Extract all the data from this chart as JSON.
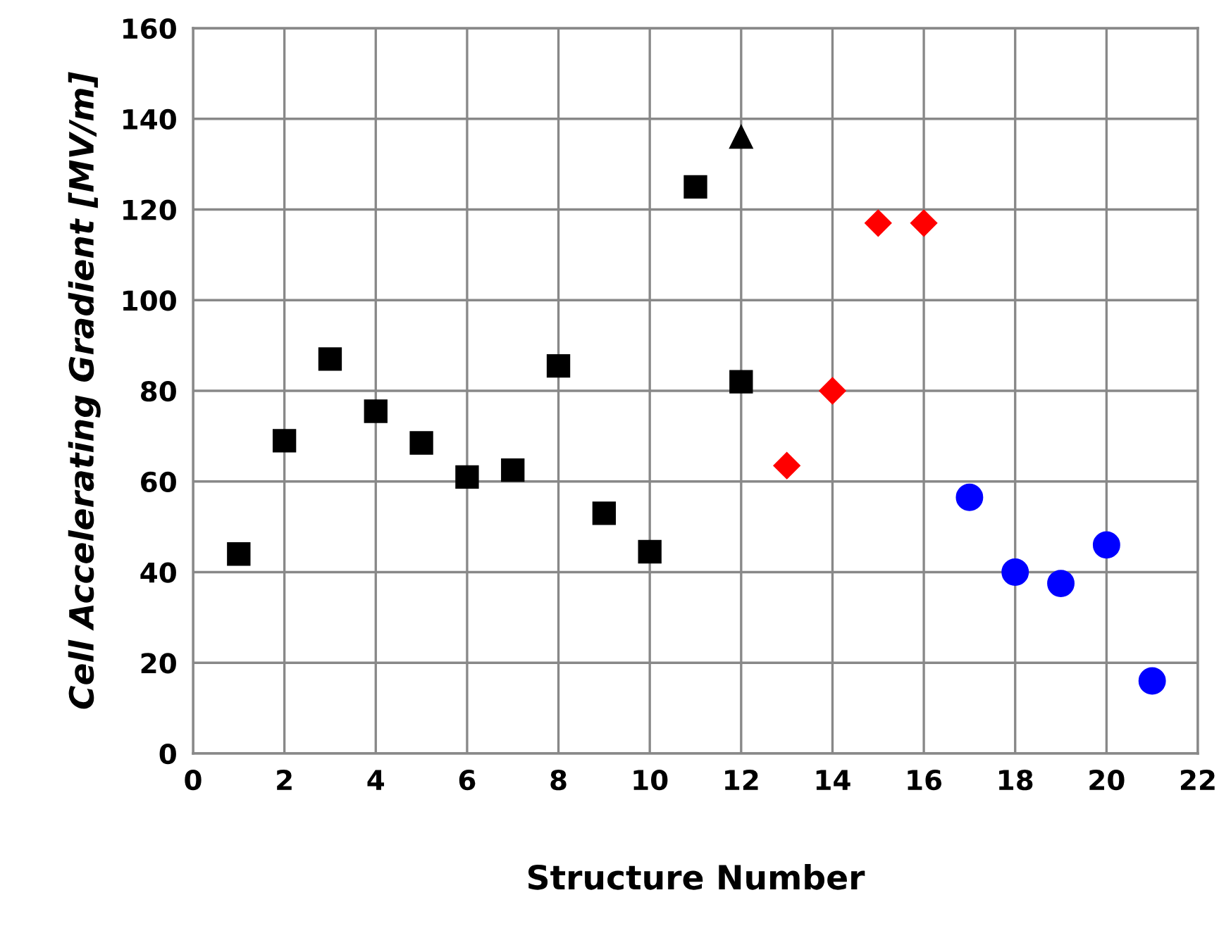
{
  "chart_data": {
    "type": "scatter",
    "xlabel": "Structure Number",
    "ylabel": "Cell Accelerating Gradient [MV/m]",
    "xlim": [
      0,
      22
    ],
    "xticks": [
      0,
      2,
      4,
      6,
      8,
      10,
      12,
      14,
      16,
      18,
      20,
      22
    ],
    "ylim": [
      0,
      160
    ],
    "yticks": [
      0,
      20,
      40,
      60,
      80,
      100,
      120,
      140,
      160
    ],
    "grid": true,
    "series": [
      {
        "color": "#000000",
        "marker": "square",
        "x": [
          1,
          2,
          3,
          4,
          5,
          6,
          7,
          8,
          9,
          10,
          11,
          12
        ],
        "values": [
          44,
          69,
          87,
          75.5,
          68.5,
          61,
          62.5,
          85.5,
          53,
          44.5,
          125,
          82
        ]
      },
      {
        "color": "#000000",
        "marker": "triangle",
        "x": [
          12
        ],
        "values": [
          136
        ]
      },
      {
        "color": "#ff0000",
        "marker": "diamond",
        "x": [
          13,
          14,
          15,
          16
        ],
        "values": [
          63.5,
          80,
          117,
          117
        ]
      },
      {
        "color": "#0000ff",
        "marker": "circle",
        "x": [
          17,
          18,
          19,
          20,
          21
        ],
        "values": [
          56.5,
          40,
          37.5,
          46,
          16
        ]
      }
    ]
  }
}
